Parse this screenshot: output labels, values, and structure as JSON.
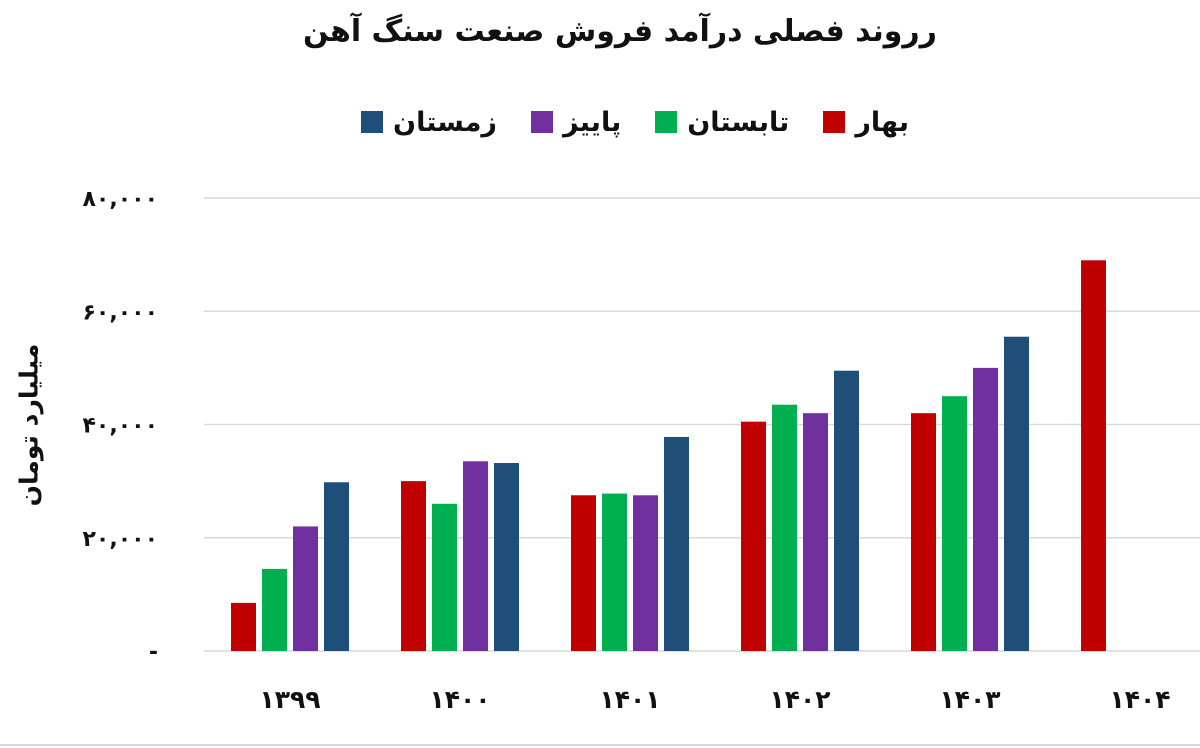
{
  "chart_data": {
    "type": "bar",
    "title": "رروند فصلی درآمد فروش صنعت سنگ آهن",
    "ylabel": "میلیارد تومان",
    "ylim": [
      0,
      80000
    ],
    "y_ticks": [
      {
        "value": 0,
        "label": "-"
      },
      {
        "value": 20000,
        "label": "۲۰,۰۰۰"
      },
      {
        "value": 40000,
        "label": "۴۰,۰۰۰"
      },
      {
        "value": 60000,
        "label": "۶۰,۰۰۰"
      },
      {
        "value": 80000,
        "label": "۸۰,۰۰۰"
      }
    ],
    "grid": true,
    "legend_position": "top",
    "categories": [
      "۱۳۹۹",
      "۱۴۰۰",
      "۱۴۰۱",
      "۱۴۰۲",
      "۱۴۰۳",
      "۱۴۰۴"
    ],
    "series": [
      {
        "name": "بهار",
        "color": "#c00000",
        "values": [
          8500,
          30000,
          27500,
          40500,
          42000,
          69000
        ]
      },
      {
        "name": "تابستان",
        "color": "#00b050",
        "values": [
          14500,
          26000,
          27800,
          43500,
          45000,
          null
        ]
      },
      {
        "name": "پاییز",
        "color": "#7030a0",
        "values": [
          22000,
          33500,
          27500,
          42000,
          50000,
          null
        ]
      },
      {
        "name": "زمستان",
        "color": "#1f4e79",
        "values": [
          29800,
          33200,
          37800,
          49500,
          55500,
          null
        ]
      }
    ]
  }
}
